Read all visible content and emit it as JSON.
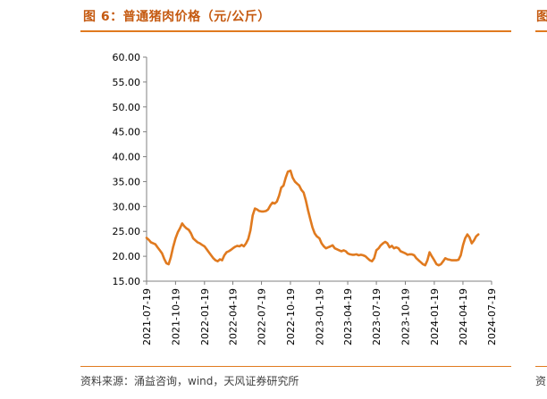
{
  "figure": {
    "title": "图 6：普通猪肉价格（元/公斤）",
    "next_title_fragment": "图",
    "source": "资料来源：涌益咨询，wind，天风证券研究所",
    "next_source_fragment": "资"
  },
  "colors": {
    "accent": "#e07a1f",
    "title": "#c55a11",
    "line": "#e07a1f",
    "axis": "#808080"
  },
  "chart_data": {
    "type": "line",
    "title": "普通猪肉价格（元/公斤）",
    "xlabel": "",
    "ylabel": "",
    "ylim": [
      15,
      60
    ],
    "yticks": [
      "60.00",
      "55.00",
      "50.00",
      "45.00",
      "40.00",
      "35.00",
      "30.00",
      "25.00",
      "20.00",
      "15.00"
    ],
    "ytick_values": [
      60,
      55,
      50,
      45,
      40,
      35,
      30,
      25,
      20,
      15
    ],
    "xlim": [
      "2021-07-19",
      "2024-07-19"
    ],
    "xticks": [
      "2021-07-19",
      "2021-10-19",
      "2022-01-19",
      "2022-04-19",
      "2022-07-19",
      "2022-10-19",
      "2023-01-19",
      "2023-04-19",
      "2023-07-19",
      "2023-10-19",
      "2024-01-19",
      "2024-04-19",
      "2024-07-19"
    ],
    "grid": false,
    "legend": "none",
    "series": [
      {
        "color": "#e07a1f",
        "points": [
          [
            "2021-07-19",
            23.7
          ],
          [
            "2021-07-26",
            23.3
          ],
          [
            "2021-08-02",
            22.8
          ],
          [
            "2021-08-09",
            22.6
          ],
          [
            "2021-08-16",
            22.4
          ],
          [
            "2021-08-23",
            21.8
          ],
          [
            "2021-08-30",
            21.2
          ],
          [
            "2021-09-06",
            20.6
          ],
          [
            "2021-09-13",
            19.5
          ],
          [
            "2021-09-20",
            18.6
          ],
          [
            "2021-09-27",
            18.4
          ],
          [
            "2021-10-04",
            19.8
          ],
          [
            "2021-10-11",
            21.8
          ],
          [
            "2021-10-19",
            23.6
          ],
          [
            "2021-10-26",
            24.8
          ],
          [
            "2021-11-02",
            25.6
          ],
          [
            "2021-11-09",
            26.6
          ],
          [
            "2021-11-16",
            26.0
          ],
          [
            "2021-11-23",
            25.6
          ],
          [
            "2021-11-30",
            25.3
          ],
          [
            "2021-12-07",
            24.6
          ],
          [
            "2021-12-14",
            23.6
          ],
          [
            "2021-12-21",
            23.2
          ],
          [
            "2021-12-28",
            22.8
          ],
          [
            "2022-01-04",
            22.6
          ],
          [
            "2022-01-11",
            22.3
          ],
          [
            "2022-01-19",
            22.0
          ],
          [
            "2022-01-26",
            21.4
          ],
          [
            "2022-02-02",
            20.8
          ],
          [
            "2022-02-09",
            20.2
          ],
          [
            "2022-02-16",
            19.6
          ],
          [
            "2022-02-23",
            19.2
          ],
          [
            "2022-03-02",
            19.0
          ],
          [
            "2022-03-09",
            19.4
          ],
          [
            "2022-03-16",
            19.2
          ],
          [
            "2022-03-23",
            20.2
          ],
          [
            "2022-03-30",
            20.8
          ],
          [
            "2022-04-06",
            21.0
          ],
          [
            "2022-04-13",
            21.3
          ],
          [
            "2022-04-19",
            21.6
          ],
          [
            "2022-04-26",
            21.9
          ],
          [
            "2022-05-03",
            22.1
          ],
          [
            "2022-05-10",
            22.0
          ],
          [
            "2022-05-17",
            22.3
          ],
          [
            "2022-05-24",
            22.0
          ],
          [
            "2022-05-31",
            22.6
          ],
          [
            "2022-06-07",
            23.5
          ],
          [
            "2022-06-14",
            25.2
          ],
          [
            "2022-06-21",
            28.2
          ],
          [
            "2022-06-28",
            29.6
          ],
          [
            "2022-07-05",
            29.4
          ],
          [
            "2022-07-12",
            29.1
          ],
          [
            "2022-07-19",
            29.0
          ],
          [
            "2022-07-26",
            29.0
          ],
          [
            "2022-08-02",
            29.1
          ],
          [
            "2022-08-09",
            29.4
          ],
          [
            "2022-08-16",
            30.2
          ],
          [
            "2022-08-23",
            30.8
          ],
          [
            "2022-08-30",
            30.6
          ],
          [
            "2022-09-06",
            31.0
          ],
          [
            "2022-09-13",
            32.2
          ],
          [
            "2022-09-20",
            33.8
          ],
          [
            "2022-09-27",
            34.2
          ],
          [
            "2022-10-04",
            35.8
          ],
          [
            "2022-10-11",
            37.0
          ],
          [
            "2022-10-19",
            37.2
          ],
          [
            "2022-10-26",
            35.8
          ],
          [
            "2022-11-02",
            35.0
          ],
          [
            "2022-11-09",
            34.6
          ],
          [
            "2022-11-16",
            34.2
          ],
          [
            "2022-11-23",
            33.3
          ],
          [
            "2022-11-30",
            32.8
          ],
          [
            "2022-12-07",
            31.2
          ],
          [
            "2022-12-14",
            29.2
          ],
          [
            "2022-12-21",
            27.5
          ],
          [
            "2022-12-28",
            25.8
          ],
          [
            "2023-01-04",
            24.6
          ],
          [
            "2023-01-11",
            24.0
          ],
          [
            "2023-01-19",
            23.6
          ],
          [
            "2023-01-26",
            22.6
          ],
          [
            "2023-02-02",
            22.0
          ],
          [
            "2023-02-09",
            21.6
          ],
          [
            "2023-02-16",
            21.8
          ],
          [
            "2023-02-23",
            22.0
          ],
          [
            "2023-03-02",
            22.2
          ],
          [
            "2023-03-09",
            21.6
          ],
          [
            "2023-03-16",
            21.4
          ],
          [
            "2023-03-23",
            21.2
          ],
          [
            "2023-03-30",
            21.0
          ],
          [
            "2023-04-06",
            21.2
          ],
          [
            "2023-04-13",
            21.0
          ],
          [
            "2023-04-19",
            20.6
          ],
          [
            "2023-04-26",
            20.4
          ],
          [
            "2023-05-03",
            20.3
          ],
          [
            "2023-05-10",
            20.3
          ],
          [
            "2023-05-17",
            20.4
          ],
          [
            "2023-05-24",
            20.2
          ],
          [
            "2023-05-31",
            20.3
          ],
          [
            "2023-06-07",
            20.2
          ],
          [
            "2023-06-14",
            20.0
          ],
          [
            "2023-06-21",
            19.6
          ],
          [
            "2023-06-28",
            19.2
          ],
          [
            "2023-07-05",
            19.0
          ],
          [
            "2023-07-12",
            19.6
          ],
          [
            "2023-07-19",
            21.2
          ],
          [
            "2023-07-26",
            21.6
          ],
          [
            "2023-08-02",
            22.2
          ],
          [
            "2023-08-09",
            22.6
          ],
          [
            "2023-08-16",
            22.9
          ],
          [
            "2023-08-23",
            22.6
          ],
          [
            "2023-08-30",
            21.8
          ],
          [
            "2023-09-06",
            22.1
          ],
          [
            "2023-09-13",
            21.6
          ],
          [
            "2023-09-20",
            21.8
          ],
          [
            "2023-09-27",
            21.6
          ],
          [
            "2023-10-04",
            21.0
          ],
          [
            "2023-10-11",
            20.8
          ],
          [
            "2023-10-19",
            20.6
          ],
          [
            "2023-10-26",
            20.3
          ],
          [
            "2023-11-02",
            20.4
          ],
          [
            "2023-11-09",
            20.4
          ],
          [
            "2023-11-16",
            20.2
          ],
          [
            "2023-11-23",
            19.6
          ],
          [
            "2023-11-30",
            19.2
          ],
          [
            "2023-12-07",
            18.8
          ],
          [
            "2023-12-14",
            18.4
          ],
          [
            "2023-12-21",
            18.2
          ],
          [
            "2023-12-28",
            19.2
          ],
          [
            "2024-01-04",
            20.8
          ],
          [
            "2024-01-11",
            20.0
          ],
          [
            "2024-01-19",
            19.2
          ],
          [
            "2024-01-26",
            18.4
          ],
          [
            "2024-02-02",
            18.2
          ],
          [
            "2024-02-09",
            18.4
          ],
          [
            "2024-02-16",
            19.0
          ],
          [
            "2024-02-23",
            19.6
          ],
          [
            "2024-03-01",
            19.4
          ],
          [
            "2024-03-08",
            19.3
          ],
          [
            "2024-03-15",
            19.2
          ],
          [
            "2024-03-22",
            19.2
          ],
          [
            "2024-03-29",
            19.2
          ],
          [
            "2024-04-05",
            19.3
          ],
          [
            "2024-04-12",
            20.2
          ],
          [
            "2024-04-19",
            22.2
          ],
          [
            "2024-04-26",
            23.6
          ],
          [
            "2024-05-03",
            24.4
          ],
          [
            "2024-05-10",
            23.8
          ],
          [
            "2024-05-17",
            22.6
          ],
          [
            "2024-05-24",
            23.2
          ],
          [
            "2024-05-31",
            24.0
          ],
          [
            "2024-06-07",
            24.4
          ]
        ]
      }
    ]
  }
}
